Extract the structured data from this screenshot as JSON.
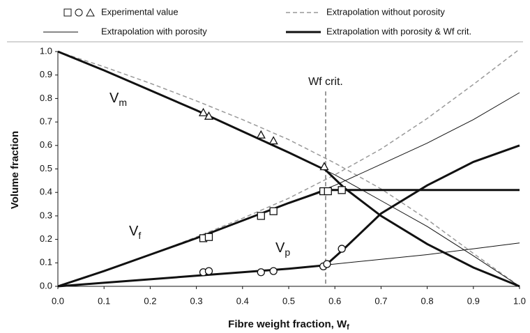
{
  "chart_data": {
    "type": "line",
    "legend": "top",
    "xlabel": {
      "text": "Fibre weight fraction, W",
      "sub": "f"
    },
    "ylabel": "Volume fraction",
    "xlim": [
      0,
      1
    ],
    "ylim": [
      0,
      1
    ],
    "xticks": [
      {
        "value": 0,
        "label": "0.0"
      },
      0.1,
      0.2,
      0.3,
      0.4,
      0.5,
      0.6,
      0.7,
      0.8,
      0.9,
      {
        "value": 1,
        "label": "1.0"
      }
    ],
    "yticks": [
      {
        "value": 0,
        "label": "0.0"
      },
      0.1,
      0.2,
      0.3,
      0.4,
      0.5,
      0.6,
      0.7,
      0.8,
      0.9,
      {
        "value": 1,
        "label": "1.0"
      }
    ],
    "annotations": [
      {
        "text": "V",
        "sub": "m"
      },
      {
        "text": "V",
        "sub": "f"
      },
      {
        "text": "V",
        "sub": "p"
      }
    ],
    "vline": {
      "x": 0.58,
      "label": "Wf crit."
    },
    "series": [
      {
        "name": "Experimental value",
        "style": "markers",
        "color": "#111",
        "curves": [
          {
            "marker": "triangle",
            "x": [
              0.315,
              0.327,
              0.44,
              0.467,
              0.577
            ],
            "y": [
              0.74,
              0.725,
              0.645,
              0.62,
              0.51
            ]
          },
          {
            "marker": "square",
            "x": [
              0.315,
              0.327,
              0.44,
              0.467,
              0.575,
              0.585,
              0.615
            ],
            "y": [
              0.205,
              0.21,
              0.3,
              0.32,
              0.405,
              0.405,
              0.41
            ]
          },
          {
            "marker": "circle",
            "x": [
              0.315,
              0.327,
              0.44,
              0.467,
              0.575,
              0.583,
              0.615
            ],
            "y": [
              0.06,
              0.065,
              0.06,
              0.065,
              0.085,
              0.095,
              0.16
            ]
          }
        ]
      },
      {
        "name": "Extrapolation without porosity",
        "style": "dashed",
        "color": "#999",
        "curves": [
          {
            "x": [
              0,
              0.1,
              0.2,
              0.3,
              0.4,
              0.5,
              0.6,
              0.7,
              0.8,
              0.9,
              1.0
            ],
            "y": [
              1,
              0.935,
              0.865,
              0.79,
              0.71,
              0.625,
              0.525,
              0.415,
              0.285,
              0.14,
              0
            ]
          },
          {
            "x": [
              0,
              0.1,
              0.2,
              0.3,
              0.4,
              0.5,
              0.6,
              0.7,
              0.8,
              0.9,
              1.0
            ],
            "y": [
              0,
              0.065,
              0.135,
              0.21,
              0.29,
              0.375,
              0.475,
              0.585,
              0.715,
              0.86,
              1.01
            ]
          }
        ]
      },
      {
        "name": "Extrapolation with porosity",
        "style": "thin",
        "color": "#111",
        "curves": [
          {
            "x": [
              0,
              0.1,
              0.2,
              0.3,
              0.4,
              0.5,
              0.6,
              0.7,
              0.8,
              0.9,
              1.0
            ],
            "y": [
              1,
              0.92,
              0.835,
              0.75,
              0.66,
              0.57,
              0.475,
              0.365,
              0.255,
              0.13,
              0
            ]
          },
          {
            "x": [
              0,
              0.1,
              0.2,
              0.3,
              0.4,
              0.5,
              0.6,
              0.7,
              0.8,
              0.9,
              1.0
            ],
            "y": [
              0,
              0.065,
              0.135,
              0.205,
              0.28,
              0.355,
              0.43,
              0.52,
              0.61,
              0.71,
              0.825
            ]
          },
          {
            "x": [
              0,
              0.1,
              0.2,
              0.3,
              0.4,
              0.5,
              0.6,
              0.7,
              0.8,
              0.9,
              1.0
            ],
            "y": [
              0,
              0.015,
              0.03,
              0.045,
              0.06,
              0.075,
              0.095,
              0.115,
              0.135,
              0.16,
              0.185
            ]
          }
        ]
      },
      {
        "name": "Extrapolation with porosity & Wf crit.",
        "style": "thick",
        "color": "#111",
        "curves": [
          {
            "x": [
              0,
              0.1,
              0.2,
              0.3,
              0.4,
              0.5,
              0.58,
              0.62,
              0.7,
              0.8,
              0.9,
              1.0
            ],
            "y": [
              1,
              0.92,
              0.835,
              0.75,
              0.66,
              0.57,
              0.495,
              0.42,
              0.3,
              0.18,
              0.08,
              0
            ]
          },
          {
            "x": [
              0,
              0.1,
              0.2,
              0.3,
              0.4,
              0.5,
              0.58,
              1.0
            ],
            "y": [
              0,
              0.065,
              0.135,
              0.205,
              0.28,
              0.355,
              0.41,
              0.41
            ]
          },
          {
            "x": [
              0,
              0.1,
              0.2,
              0.3,
              0.4,
              0.5,
              0.58,
              0.62,
              0.7,
              0.8,
              0.9,
              1.0
            ],
            "y": [
              0,
              0.015,
              0.03,
              0.045,
              0.06,
              0.075,
              0.09,
              0.16,
              0.31,
              0.43,
              0.53,
              0.6
            ]
          }
        ]
      }
    ]
  }
}
